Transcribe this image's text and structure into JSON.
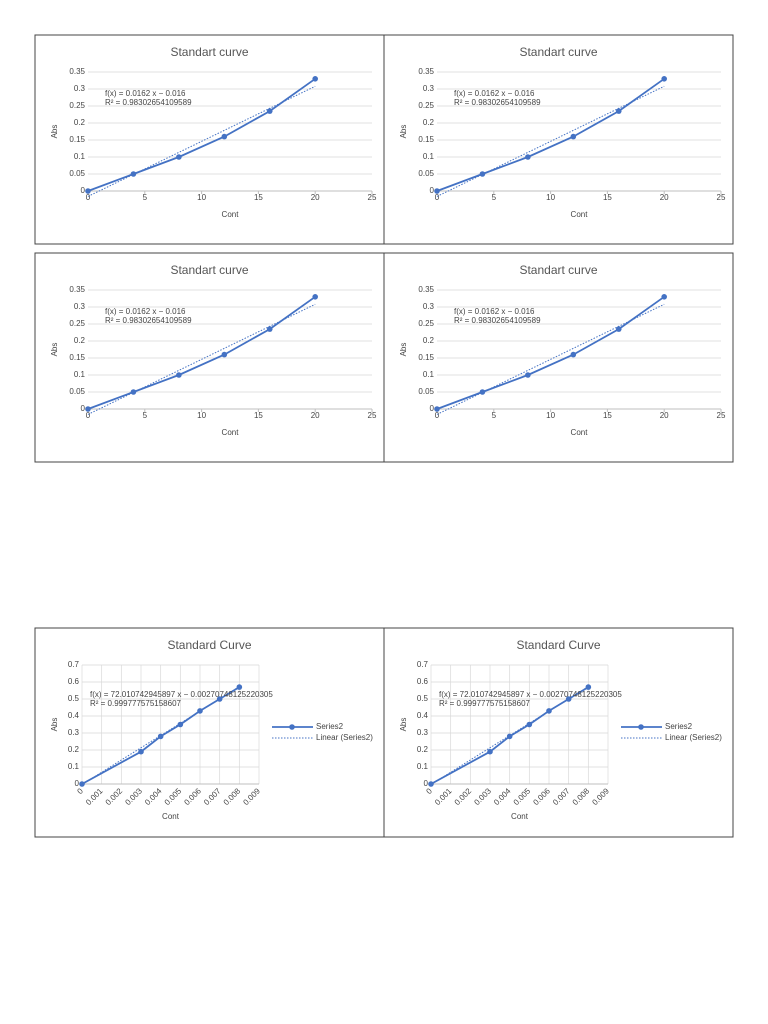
{
  "chart_data": [
    {
      "type": "line",
      "title": "Standart curve",
      "x_label": "Cont",
      "y_label": "Abs",
      "x": [
        0,
        4,
        8,
        12,
        16,
        20
      ],
      "series": [
        {
          "color": "#4472c4",
          "values": [
            0,
            0.05,
            0.1,
            0.16,
            0.235,
            0.33
          ]
        }
      ],
      "trendline": {
        "x": [
          0,
          20
        ],
        "values": [
          -0.016,
          0.308
        ]
      },
      "equation": [
        "f(x) = 0.0162 x − 0.016",
        "R² = 0.98302654109589"
      ],
      "xlim": [
        0,
        25
      ],
      "xticks": [
        0,
        5,
        10,
        15,
        20,
        25
      ],
      "ylim": [
        0,
        0.35
      ],
      "yticks": [
        0,
        0.05,
        0.1,
        0.15,
        0.2,
        0.25,
        0.3,
        0.35
      ],
      "grid": [
        "y"
      ]
    },
    {
      "type": "line",
      "title": "Standart curve",
      "x_label": "Cont",
      "y_label": "Abs",
      "x": [
        0,
        4,
        8,
        12,
        16,
        20
      ],
      "series": [
        {
          "color": "#4472c4",
          "values": [
            0,
            0.05,
            0.1,
            0.16,
            0.235,
            0.33
          ]
        }
      ],
      "trendline": {
        "x": [
          0,
          20
        ],
        "values": [
          -0.016,
          0.308
        ]
      },
      "equation": [
        "f(x) = 0.0162 x − 0.016",
        "R² = 0.98302654109589"
      ],
      "xlim": [
        0,
        25
      ],
      "xticks": [
        0,
        5,
        10,
        15,
        20,
        25
      ],
      "ylim": [
        0,
        0.35
      ],
      "yticks": [
        0,
        0.05,
        0.1,
        0.15,
        0.2,
        0.25,
        0.3,
        0.35
      ],
      "grid": [
        "y"
      ]
    },
    {
      "type": "line",
      "title": "Standart curve",
      "x_label": "Cont",
      "y_label": "Abs",
      "x": [
        0,
        4,
        8,
        12,
        16,
        20
      ],
      "series": [
        {
          "color": "#4472c4",
          "values": [
            0,
            0.05,
            0.1,
            0.16,
            0.235,
            0.33
          ]
        }
      ],
      "trendline": {
        "x": [
          0,
          20
        ],
        "values": [
          -0.016,
          0.308
        ]
      },
      "equation": [
        "f(x) = 0.0162 x − 0.016",
        "R² = 0.98302654109589"
      ],
      "xlim": [
        0,
        25
      ],
      "xticks": [
        0,
        5,
        10,
        15,
        20,
        25
      ],
      "ylim": [
        0,
        0.35
      ],
      "yticks": [
        0,
        0.05,
        0.1,
        0.15,
        0.2,
        0.25,
        0.3,
        0.35
      ],
      "grid": [
        "y"
      ]
    },
    {
      "type": "line",
      "title": "Standart curve",
      "x_label": "Cont",
      "y_label": "Abs",
      "x": [
        0,
        4,
        8,
        12,
        16,
        20
      ],
      "series": [
        {
          "color": "#4472c4",
          "values": [
            0,
            0.05,
            0.1,
            0.16,
            0.235,
            0.33
          ]
        }
      ],
      "trendline": {
        "x": [
          0,
          20
        ],
        "values": [
          -0.016,
          0.308
        ]
      },
      "equation": [
        "f(x) = 0.0162 x − 0.016",
        "R² = 0.98302654109589"
      ],
      "xlim": [
        0,
        25
      ],
      "xticks": [
        0,
        5,
        10,
        15,
        20,
        25
      ],
      "ylim": [
        0,
        0.35
      ],
      "yticks": [
        0,
        0.05,
        0.1,
        0.15,
        0.2,
        0.25,
        0.3,
        0.35
      ],
      "grid": [
        "y"
      ]
    },
    {
      "type": "line",
      "title": "Standard Curve",
      "x_label": "Cont",
      "y_label": "Abs",
      "x": [
        0,
        0.003,
        0.004,
        0.005,
        0.006,
        0.007,
        0.008
      ],
      "series": [
        {
          "name": "Series2",
          "color": "#4472c4",
          "values": [
            0,
            0.19,
            0.28,
            0.35,
            0.43,
            0.5,
            0.57
          ]
        }
      ],
      "trendline": {
        "name": "Linear (Series2)",
        "x": [
          0,
          0.008
        ],
        "values": [
          -0.0027,
          0.573
        ]
      },
      "equation": [
        "f(x) = 72.010742945897 x − 0.00270748125220305",
        "R² = 0.999777575158607"
      ],
      "xlim": [
        0,
        0.009
      ],
      "xticks": [
        0,
        0.001,
        0.002,
        0.003,
        0.004,
        0.005,
        0.006,
        0.007,
        0.008,
        0.009
      ],
      "ylim": [
        0,
        0.7
      ],
      "yticks": [
        0,
        0.1,
        0.2,
        0.3,
        0.4,
        0.5,
        0.6,
        0.7
      ],
      "grid": [
        "x",
        "y"
      ],
      "legend": "right"
    },
    {
      "type": "line",
      "title": "Standard Curve",
      "x_label": "Cont",
      "y_label": "Abs",
      "x": [
        0,
        0.003,
        0.004,
        0.005,
        0.006,
        0.007,
        0.008
      ],
      "series": [
        {
          "name": "Series2",
          "color": "#4472c4",
          "values": [
            0,
            0.19,
            0.28,
            0.35,
            0.43,
            0.5,
            0.57
          ]
        }
      ],
      "trendline": {
        "name": "Linear (Series2)",
        "x": [
          0,
          0.008
        ],
        "values": [
          -0.0027,
          0.573
        ]
      },
      "equation": [
        "f(x) = 72.010742945897 x − 0.00270748125220305",
        "R² = 0.999777575158607"
      ],
      "xlim": [
        0,
        0.009
      ],
      "xticks": [
        0,
        0.001,
        0.002,
        0.003,
        0.004,
        0.005,
        0.006,
        0.007,
        0.008,
        0.009
      ],
      "ylim": [
        0,
        0.7
      ],
      "yticks": [
        0,
        0.1,
        0.2,
        0.3,
        0.4,
        0.5,
        0.6,
        0.7
      ],
      "grid": [
        "x",
        "y"
      ],
      "legend": "right"
    }
  ]
}
